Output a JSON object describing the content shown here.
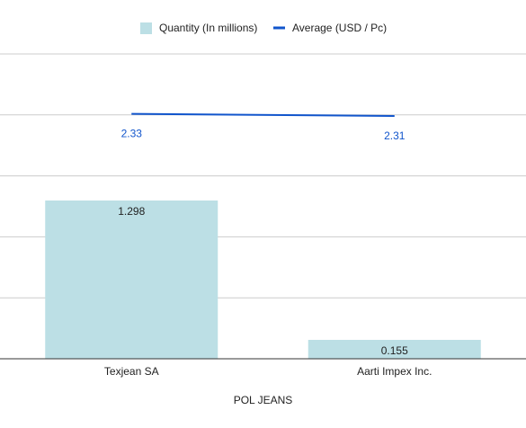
{
  "chart_data": {
    "type": "bar",
    "xlabel": "POL JEANS",
    "categories": [
      "Texjean SA",
      "Aarti Impex Inc."
    ],
    "series": [
      {
        "name": "Quantity (In millions)",
        "type": "bar",
        "axis": "left",
        "color": "#bcdfe5",
        "values": [
          1.298,
          0.155
        ],
        "labels": [
          "1.298",
          "0.155"
        ]
      },
      {
        "name": "Average (USD / Pc)",
        "type": "line",
        "axis": "right",
        "color": "#1155cc",
        "values": [
          2.33,
          2.31
        ],
        "labels": [
          "2.33",
          "2.31"
        ]
      }
    ],
    "ylim_left": [
      0,
      2.5
    ],
    "ylim_right": [
      0,
      2.9
    ],
    "grid": true,
    "legend_position": "top"
  }
}
